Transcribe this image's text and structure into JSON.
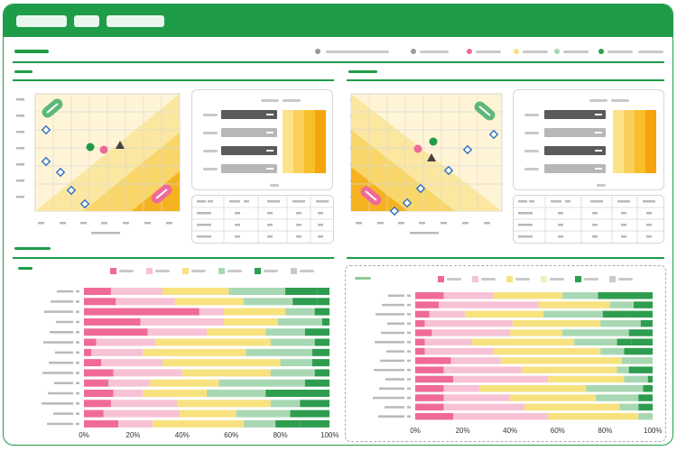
{
  "colors": {
    "brand": "#1f9c48",
    "pink_dark": "#ef6a97",
    "pink_light": "#f7c2d6",
    "yellow": "#f7e27f",
    "green_light": "#a8d8b3",
    "green_dark": "#2e9d4f",
    "orange": "#f7a30a"
  },
  "icons": {
    "circle_gray": "circle-gray-icon",
    "circle_pink": "circle-pink-icon",
    "circle_yellow": "circle-yellow-icon",
    "circle_lightgreen": "circle-lightgreen-icon",
    "circle_green": "circle-green-icon",
    "triangle": "triangle-icon",
    "diamond": "diamond-icon"
  },
  "bar_charts": {
    "left": {
      "x_ticks": [
        "0%",
        "20%",
        "40%",
        "60%",
        "80%",
        "100%"
      ],
      "rows": [
        [
          11,
          21,
          27,
          23,
          13,
          5
        ],
        [
          13,
          24,
          28,
          20,
          10,
          5
        ],
        [
          47,
          10,
          25,
          12,
          6,
          0
        ],
        [
          23,
          34,
          22,
          18,
          3,
          0
        ],
        [
          26,
          24,
          24,
          16,
          10,
          0
        ],
        [
          5,
          24,
          47,
          18,
          6,
          0
        ],
        [
          3,
          21,
          42,
          27,
          7,
          0
        ],
        [
          7,
          25,
          48,
          13,
          7,
          0
        ],
        [
          12,
          28,
          36,
          18,
          6,
          0
        ],
        [
          10,
          17,
          28,
          35,
          10,
          0
        ],
        [
          12,
          12,
          26,
          24,
          10,
          16
        ],
        [
          11,
          27,
          38,
          12,
          12,
          0
        ],
        [
          8,
          31,
          23,
          22,
          16,
          0
        ],
        [
          14,
          14,
          37,
          13,
          10,
          12
        ]
      ]
    },
    "right": {
      "x_ticks": [
        "0%",
        "20%",
        "40%",
        "60%",
        "80%",
        "100%"
      ],
      "rows": [
        [
          12,
          21,
          29,
          15,
          11,
          12
        ],
        [
          10,
          42,
          30,
          10,
          8,
          0
        ],
        [
          6,
          15,
          33,
          25,
          10,
          11
        ],
        [
          4,
          37,
          37,
          17,
          5,
          0
        ],
        [
          7,
          33,
          22,
          28,
          10,
          0
        ],
        [
          4,
          20,
          43,
          18,
          6,
          9
        ],
        [
          4,
          29,
          45,
          10,
          12,
          0
        ],
        [
          15,
          21,
          51,
          13,
          0,
          0
        ],
        [
          12,
          33,
          40,
          5,
          10,
          0
        ],
        [
          16,
          40,
          32,
          10,
          2,
          0
        ],
        [
          12,
          15,
          45,
          24,
          4,
          0
        ],
        [
          12,
          28,
          36,
          18,
          6,
          0
        ],
        [
          12,
          34,
          40,
          8,
          6,
          0
        ],
        [
          16,
          40,
          38,
          6,
          0,
          0
        ]
      ]
    }
  }
}
